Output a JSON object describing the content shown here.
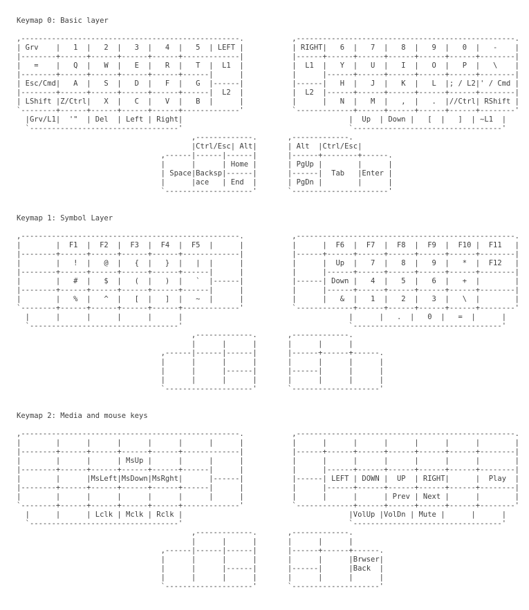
{
  "document": {
    "text_color": "#3d3d3d",
    "background_color": "#ffffff"
  },
  "sections": [
    {
      "heading": "Keymap 0: Basic layer",
      "art_lines": [
        ",--------------------------------------------------.           ,--------------------------------------------------.",
        "| Grv    |   1  |   2  |   3  |   4  |   5  | LEFT |           | RIGHT|   6  |   7  |   8  |   9  |   0  |   -    |",
        "|--------+------+------+------+------+-------------|           |------+------+------+------+------+------+--------|",
        "|   =    |   Q  |   W  |   E  |   R  |   T  |  L1  |           |  L1  |   Y  |   U  |   I  |   O  |   P  |   \\    |",
        "|--------+------+------+------+------+------|      |           |      |------+------+------+------+------+--------|",
        "| Esc/Cmd|   A  |   S  |   D  |   F  |   G  |------|           |------|   H  |   J  |   K  |   L  |; / L2|' / Cmd |",
        "|--------+------+------+------+------+------|  L2  |           |  L2  |------+------+------+------+------+--------|",
        "| LShift |Z/Ctrl|   X  |   C  |   V  |   B  |      |           |      |   N  |   M  |   ,  |   .  |//Ctrl| RShift |",
        "`--------+------+------+------+------+-------------'           `-------------+------+------+------+------+--------'",
        "  |Grv/L1|  '\"  | Del  | Left | Right|                                      |  Up  | Down |   [  |   ]  | ~L1  |",
        "  `----------------------------------'                                      `----------------------------------'",
        "                                        ,-------------.       ,-------------.",
        "                                        |Ctrl/Esc| Alt|       | Alt  |Ctrl/Esc|",
        "                                 ,------|------|------|       |------+--------+------.",
        "                                 |      |      | Home |       | PgUp |        |      |",
        "                                 | Space|Backsp|------|       |------|  Tab   |Enter |",
        "                                 |      |ace   | End  |       | PgDn |        |      |",
        "                                 `--------------------'       `----------------------'"
      ],
      "keys": {
        "left_hand": [
          [
            "Grv",
            "1",
            "2",
            "3",
            "4",
            "5",
            "LEFT"
          ],
          [
            "=",
            "Q",
            "W",
            "E",
            "R",
            "T",
            "L1"
          ],
          [
            "Esc/Cmd",
            "A",
            "S",
            "D",
            "F",
            "G"
          ],
          [
            "L2"
          ],
          [
            "LShift",
            "Z/Ctrl",
            "X",
            "C",
            "V",
            "B"
          ],
          [
            "Grv/L1",
            "'\"",
            "Del",
            "Left",
            "Right"
          ]
        ],
        "right_hand": [
          [
            "RIGHT",
            "6",
            "7",
            "8",
            "9",
            "0",
            "-"
          ],
          [
            "L1",
            "Y",
            "U",
            "I",
            "O",
            "P",
            "\\"
          ],
          [
            "H",
            "J",
            "K",
            "L",
            "; / L2",
            "' / Cmd"
          ],
          [
            "L2"
          ],
          [
            "N",
            "M",
            ",",
            ".",
            "//Ctrl",
            "RShift"
          ],
          [
            "Up",
            "Down",
            "[",
            "]",
            "~L1"
          ]
        ],
        "left_thumb": [
          "Ctrl/Esc",
          "Alt",
          "Home",
          "Space",
          "Backspace",
          "End"
        ],
        "right_thumb": [
          "Alt",
          "Ctrl/Esc",
          "PgUp",
          "Tab",
          "Enter",
          "PgDn"
        ]
      }
    },
    {
      "heading": "Keymap 1: Symbol Layer",
      "art_lines": [
        ",--------------------------------------------------.           ,--------------------------------------------------.",
        "|        |  F1  |  F2  |  F3  |  F4  |  F5  |      |           |      |  F6  |  F7  |  F8  |  F9  |  F10 |  F11   |",
        "|--------+------+------+------+------+-------------|           |------+------+------+------+------+------+--------|",
        "|        |   !  |   @  |   {  |   }  |   |  |      |           |      |  Up  |   7  |   8  |   9  |   *  |  F12   |",
        "|--------+------+------+------+------+------|      |           |      |------+------+------+------+------+--------|",
        "|        |   #  |   $  |   (  |   )  |   `  |------|           |------| Down |   4  |   5  |   6  |   +  |        |",
        "|--------+------+------+------+------+------|      |           |      |------+------+------+------+------+--------|",
        "|        |   %  |   ^  |   [  |   ]  |   ~  |      |           |      |   &  |   1  |   2  |   3  |   \\  |        |",
        "`--------+------+------+------+------+-------------'           `-------------+------+------+------+------+--------'",
        "  |      |      |      |      |      |                                      |      |   .  |   0  |   =  |      |",
        "  `----------------------------------'                                      `----------------------------------'",
        "                                        ,-------------.       ,-------------.",
        "                                        |      |      |       |      |      |",
        "                                 ,------|------|------|       |------+------+------.",
        "                                 |      |      |      |       |      |      |      |",
        "                                 |      |      |------|       |------|      |      |",
        "                                 |      |      |      |       |      |      |      |",
        "                                 `--------------------'       `--------------------'"
      ],
      "keys": {
        "left_hand": [
          [
            "F1",
            "F2",
            "F3",
            "F4",
            "F5"
          ],
          [
            "!",
            "@",
            "{",
            "}",
            "|"
          ],
          [
            "#",
            "$",
            "(",
            ")",
            "`"
          ],
          [
            "%",
            "^",
            "[",
            "]",
            "~"
          ]
        ],
        "right_hand": [
          [
            "F6",
            "F7",
            "F8",
            "F9",
            "F10",
            "F11"
          ],
          [
            "Up",
            "7",
            "8",
            "9",
            "*",
            "F12"
          ],
          [
            "Down",
            "4",
            "5",
            "6",
            "+"
          ],
          [
            "&",
            "1",
            "2",
            "3",
            "\\"
          ],
          [
            ".",
            "0",
            "="
          ]
        ],
        "left_thumb": [],
        "right_thumb": []
      }
    },
    {
      "heading": "Keymap 2: Media and mouse keys",
      "art_lines": [
        ",--------------------------------------------------.           ,--------------------------------------------------.",
        "|        |      |      |      |      |      |      |           |      |      |      |      |      |      |        |",
        "|--------+------+------+------+------+-------------|           |------+------+------+------+------+------+--------|",
        "|        |      |      | MsUp |      |      |      |           |      |      |      |      |      |      |        |",
        "|--------+------+------+------+------+------|      |           |      |------+------+------+------+------+--------|",
        "|        |      |MsLeft|MsDown|MsRght|      |------|           |------| LEFT | DOWN |  UP  | RIGHT|      |  Play  |",
        "|--------+------+------+------+------+------|      |           |      |------+------+------+------+------+--------|",
        "|        |      |      |      |      |      |      |           |      |      |      | Prev | Next |      |        |",
        "`--------+------+------+------+------+-------------'           `-------------+------+------+------+------+--------'",
        "  |      |      | Lclk | Mclk | Rclk |                                      |VolUp |VolDn | Mute |      |      |",
        "  `----------------------------------'                                      `----------------------------------'",
        "                                        ,-------------.       ,-------------.",
        "                                        |      |      |       |      |      |",
        "                                 ,------|------|------|       |------+------+------.",
        "                                 |      |      |      |       |      |      |Brwser|",
        "                                 |      |      |------|       |------|      |Back  |",
        "                                 |      |      |      |       |      |      |      |",
        "                                 `--------------------'       `--------------------'"
      ],
      "keys": {
        "left_hand": [
          [
            "MsUp"
          ],
          [
            "MsLeft",
            "MsDown",
            "MsRght"
          ],
          [
            "Lclk",
            "Mclk",
            "Rclk"
          ]
        ],
        "right_hand": [
          [
            "LEFT",
            "DOWN",
            "UP",
            "RIGHT",
            "Play"
          ],
          [
            "Prev",
            "Next"
          ],
          [
            "VolUp",
            "VolDn",
            "Mute"
          ]
        ],
        "left_thumb": [],
        "right_thumb": [
          "Brwser Back"
        ]
      }
    }
  ]
}
